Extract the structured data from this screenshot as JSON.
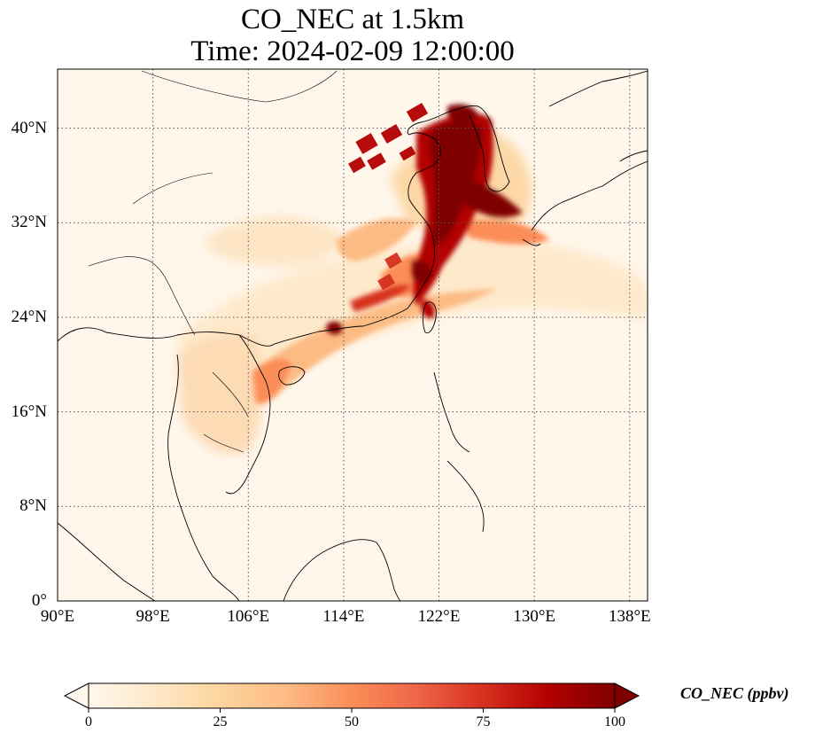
{
  "title": {
    "line1": "CO_NEC at 1.5km",
    "line2": "Time: 2024-02-09 12:00:00"
  },
  "map": {
    "extent": {
      "lon_min": 90,
      "lon_max": 139.5,
      "lat_min": 0,
      "lat_max": 45
    },
    "gridlines": "dotted",
    "x_ticks": [
      {
        "lon": 90,
        "label": "90°E"
      },
      {
        "lon": 98,
        "label": "98°E"
      },
      {
        "lon": 106,
        "label": "106°E"
      },
      {
        "lon": 114,
        "label": "114°E"
      },
      {
        "lon": 122,
        "label": "122°E"
      },
      {
        "lon": 130,
        "label": "130°E"
      },
      {
        "lon": 138,
        "label": "138°E"
      }
    ],
    "y_ticks": [
      {
        "lat": 0,
        "label": "0°"
      },
      {
        "lat": 8,
        "label": "8°N"
      },
      {
        "lat": 16,
        "label": "16°N"
      },
      {
        "lat": 24,
        "label": "24°N"
      },
      {
        "lat": 32,
        "label": "32°N"
      },
      {
        "lat": 40,
        "label": "40°N"
      }
    ]
  },
  "colorbar": {
    "label": "CO_NEC (ppbv)",
    "colormap": "OrRd",
    "extend": "both",
    "vmin": 0,
    "vmax": 100,
    "ticks": [
      {
        "value": 0,
        "label": "0"
      },
      {
        "value": 25,
        "label": "25"
      },
      {
        "value": 50,
        "label": "50"
      },
      {
        "value": 75,
        "label": "75"
      },
      {
        "value": 100,
        "label": "100"
      }
    ],
    "colors": [
      "#fff7ec",
      "#fee8c8",
      "#fdd49e",
      "#fdbb84",
      "#fc8d59",
      "#ef6548",
      "#d7301f",
      "#b30000",
      "#7f0000"
    ]
  }
}
